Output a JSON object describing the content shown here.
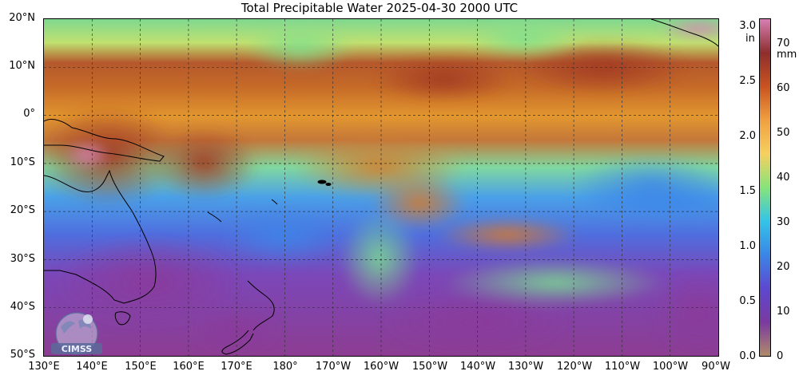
{
  "title": "Total Precipitable Water  2025-04-30 2000 UTC",
  "map": {
    "lat_labels": [
      "20°N",
      "10°N",
      "0°",
      "10°S",
      "20°S",
      "30°S",
      "40°S",
      "50°S"
    ],
    "lon_labels": [
      "130°E",
      "140°E",
      "150°E",
      "160°E",
      "170°E",
      "180°",
      "170°W",
      "160°W",
      "150°W",
      "140°W",
      "130°W",
      "120°W",
      "110°W",
      "100°W",
      "90°W"
    ],
    "lat_range": [
      20,
      -50
    ],
    "lon_range": [
      "130°E",
      "90°W"
    ],
    "grid": "dashed",
    "logo_text": "CIMSS"
  },
  "colorbar": {
    "unit_left": "in",
    "unit_right": "mm",
    "ticks_in": [
      "3.0",
      "2.5",
      "2.0",
      "1.5",
      "1.0",
      "0.5",
      "0.0"
    ],
    "ticks_mm": [
      "70",
      "60",
      "50",
      "40",
      "30",
      "20",
      "10",
      "0"
    ],
    "colors": [
      "#d77fb2",
      "#8e2e2e",
      "#c95320",
      "#f0a040",
      "#f6d060",
      "#86e47a",
      "#34c4e8",
      "#3a86e6",
      "#5d48d0",
      "#7a3aa0",
      "#b08a6a"
    ]
  }
}
